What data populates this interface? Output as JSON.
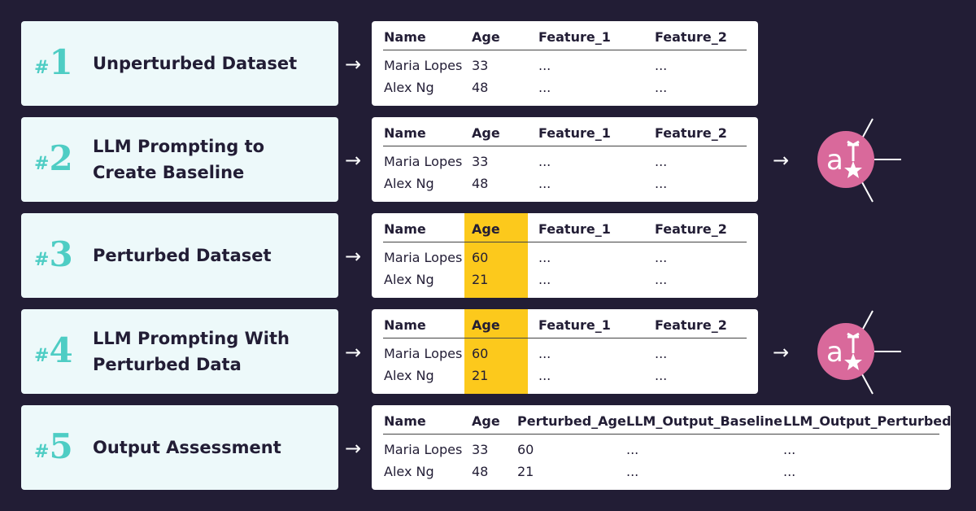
{
  "colors": {
    "background": "#221d35",
    "step_box": "#edf9fa",
    "accent_teal": "#4ecdc4",
    "highlight": "#fcc91c",
    "llm_icon": "#d9699b"
  },
  "steps": [
    {
      "number_prefix": "#",
      "number": "1",
      "title": [
        "Unperturbed Dataset"
      ]
    },
    {
      "number_prefix": "#",
      "number": "2",
      "title": [
        "LLM Prompting to",
        "Create Baseline"
      ]
    },
    {
      "number_prefix": "#",
      "number": "3",
      "title": [
        "Perturbed Dataset"
      ]
    },
    {
      "number_prefix": "#",
      "number": "4",
      "title": [
        "LLM Prompting With",
        "Perturbed Data"
      ]
    },
    {
      "number_prefix": "#",
      "number": "5",
      "title": [
        "Output Assessment"
      ]
    }
  ],
  "arrow": "→",
  "tables": [
    {
      "headers": [
        "Name",
        "Age",
        "Feature_1",
        "Feature_2"
      ],
      "rows": [
        [
          "Maria Lopes",
          "33",
          "...",
          "..."
        ],
        [
          "Alex Ng",
          "48",
          "...",
          "..."
        ]
      ]
    },
    {
      "headers": [
        "Name",
        "Age",
        "Feature_1",
        "Feature_2"
      ],
      "rows": [
        [
          "Maria Lopes",
          "33",
          "...",
          "..."
        ],
        [
          "Alex Ng",
          "48",
          "...",
          "..."
        ]
      ]
    },
    {
      "headers": [
        "Name",
        "Age",
        "Feature_1",
        "Feature_2"
      ],
      "rows": [
        [
          "Maria Lopes",
          "60",
          "...",
          "..."
        ],
        [
          "Alex Ng",
          "21",
          "...",
          "..."
        ]
      ],
      "highlight_column": "Age"
    },
    {
      "headers": [
        "Name",
        "Age",
        "Feature_1",
        "Feature_2"
      ],
      "rows": [
        [
          "Maria Lopes",
          "60",
          "...",
          "..."
        ],
        [
          "Alex Ng",
          "21",
          "...",
          "..."
        ]
      ],
      "highlight_column": "Age"
    },
    {
      "headers": [
        "Name",
        "Age",
        "Perturbed_Age",
        "LLM_Output_Baseline",
        "LLM_Output_Perturbed"
      ],
      "rows": [
        [
          "Maria Lopes",
          "33",
          "60",
          "...",
          "..."
        ],
        [
          "Alex Ng",
          "48",
          "21",
          "...",
          "..."
        ]
      ]
    }
  ],
  "llm_icon": "ai-star-icon"
}
